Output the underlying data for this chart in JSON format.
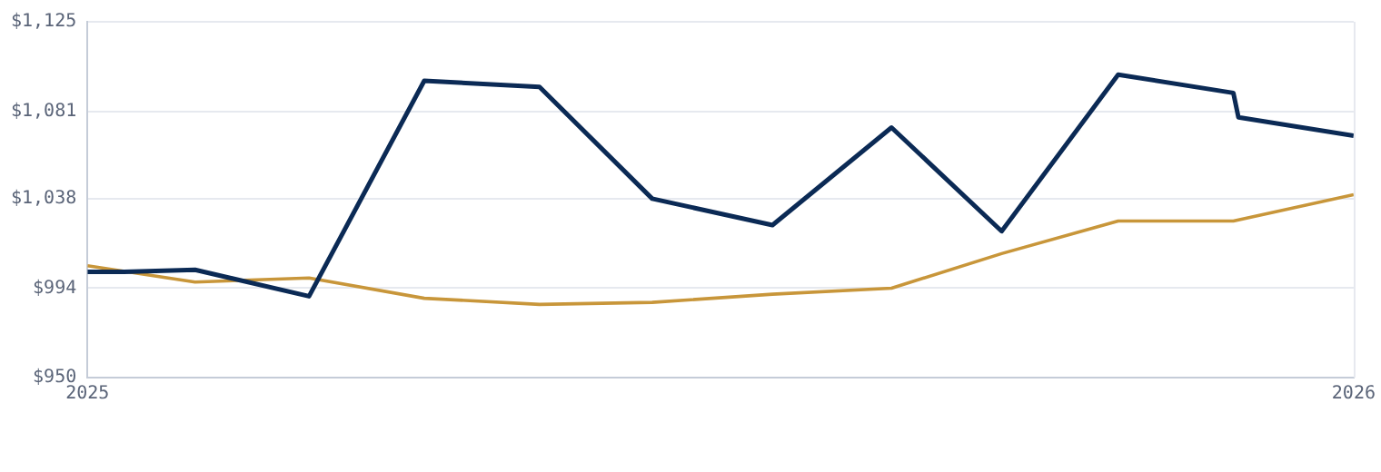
{
  "chart_data": {
    "type": "line",
    "xlim": [
      2025,
      2026
    ],
    "xticks": [
      2025,
      2026
    ],
    "ylim": [
      950,
      1125
    ],
    "yticks": [
      {
        "value": 950,
        "label": "$950"
      },
      {
        "value": 994,
        "label": "$994"
      },
      {
        "value": 1038,
        "label": "$1,038"
      },
      {
        "value": 1081,
        "label": "$1,081"
      },
      {
        "value": 1125,
        "label": "$1,125"
      }
    ],
    "grid": "y",
    "legend": false,
    "marker": "none",
    "line_style": "solid",
    "series": [
      {
        "color": "#0b2a55",
        "x": [
          2025,
          2025.029,
          2025.085,
          2025.175,
          2025.266,
          2025.357,
          2025.446,
          2025.541,
          2025.635,
          2025.722,
          2025.814,
          2025.905,
          2025.909,
          2026
        ],
        "values": [
          1002,
          1002,
          1003,
          990,
          1096,
          1093,
          1038,
          1025,
          1073,
          1022,
          1099,
          1090,
          1078,
          1069
        ]
      },
      {
        "color": "#c8963a",
        "x": [
          2025,
          2025.085,
          2025.175,
          2025.266,
          2025.357,
          2025.446,
          2025.541,
          2025.635,
          2025.722,
          2025.814,
          2025.905,
          2026
        ],
        "values": [
          1005,
          997,
          999,
          989,
          986,
          987,
          991,
          994,
          1011,
          1027,
          1027,
          1040
        ]
      }
    ]
  }
}
